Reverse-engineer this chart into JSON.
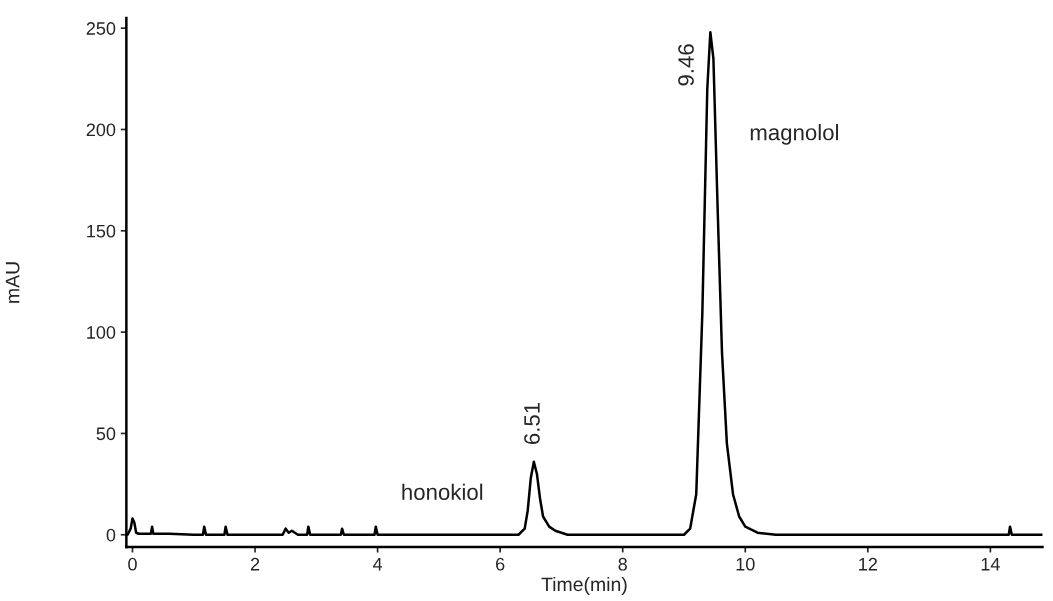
{
  "chart_data": {
    "type": "line",
    "xlabel": "Time(min)",
    "ylabel": "mAU",
    "xlim": [
      -0.1,
      14.85
    ],
    "ylim": [
      -6,
      255
    ],
    "xticks": [
      0,
      2,
      4,
      6,
      8,
      10,
      12,
      14
    ],
    "yticks": [
      0,
      50,
      100,
      150,
      200,
      250
    ],
    "grid": false,
    "legend": false,
    "marker": "none",
    "line_style": "solid",
    "series": [
      {
        "color": "#000000",
        "x": [
          -0.08,
          -0.03,
          0.0,
          0.03,
          0.06,
          0.1,
          0.2,
          0.3,
          0.32,
          0.34,
          0.6,
          1.0,
          1.15,
          1.17,
          1.2,
          1.5,
          1.52,
          1.55,
          2.0,
          2.45,
          2.5,
          2.55,
          2.6,
          2.7,
          2.85,
          2.87,
          2.9,
          3.4,
          3.42,
          3.45,
          3.95,
          3.97,
          4.0,
          5.0,
          6.0,
          6.3,
          6.4,
          6.45,
          6.5,
          6.55,
          6.6,
          6.65,
          6.7,
          6.8,
          6.9,
          7.0,
          7.1,
          8.0,
          8.9,
          9.0,
          9.1,
          9.2,
          9.3,
          9.38,
          9.43,
          9.48,
          9.55,
          9.62,
          9.7,
          9.8,
          9.9,
          10.0,
          10.2,
          10.5,
          11.0,
          12.0,
          13.0,
          14.0,
          14.3,
          14.32,
          14.35,
          14.85
        ],
        "values": [
          0,
          3,
          8,
          6,
          1,
          0.5,
          0.5,
          0.5,
          4,
          0.5,
          0.5,
          0,
          0,
          4,
          0,
          0,
          4,
          0,
          0,
          0,
          3,
          1,
          2,
          0,
          0,
          4,
          0,
          0,
          3,
          0,
          0,
          4,
          0,
          0,
          0,
          0,
          3,
          12,
          28,
          36,
          30,
          18,
          9,
          4,
          2,
          1,
          0,
          0,
          0,
          0,
          3,
          20,
          110,
          220,
          248,
          235,
          160,
          90,
          45,
          20,
          9,
          4,
          1,
          0,
          0,
          0,
          0,
          0,
          0,
          4,
          0,
          0
        ]
      }
    ],
    "annotations": [
      {
        "text": "6.51",
        "x": 6.55,
        "y": 36
      },
      {
        "text": "9.46",
        "x": 9.46,
        "y": 248
      },
      "honokiol",
      "magnolol"
    ]
  }
}
